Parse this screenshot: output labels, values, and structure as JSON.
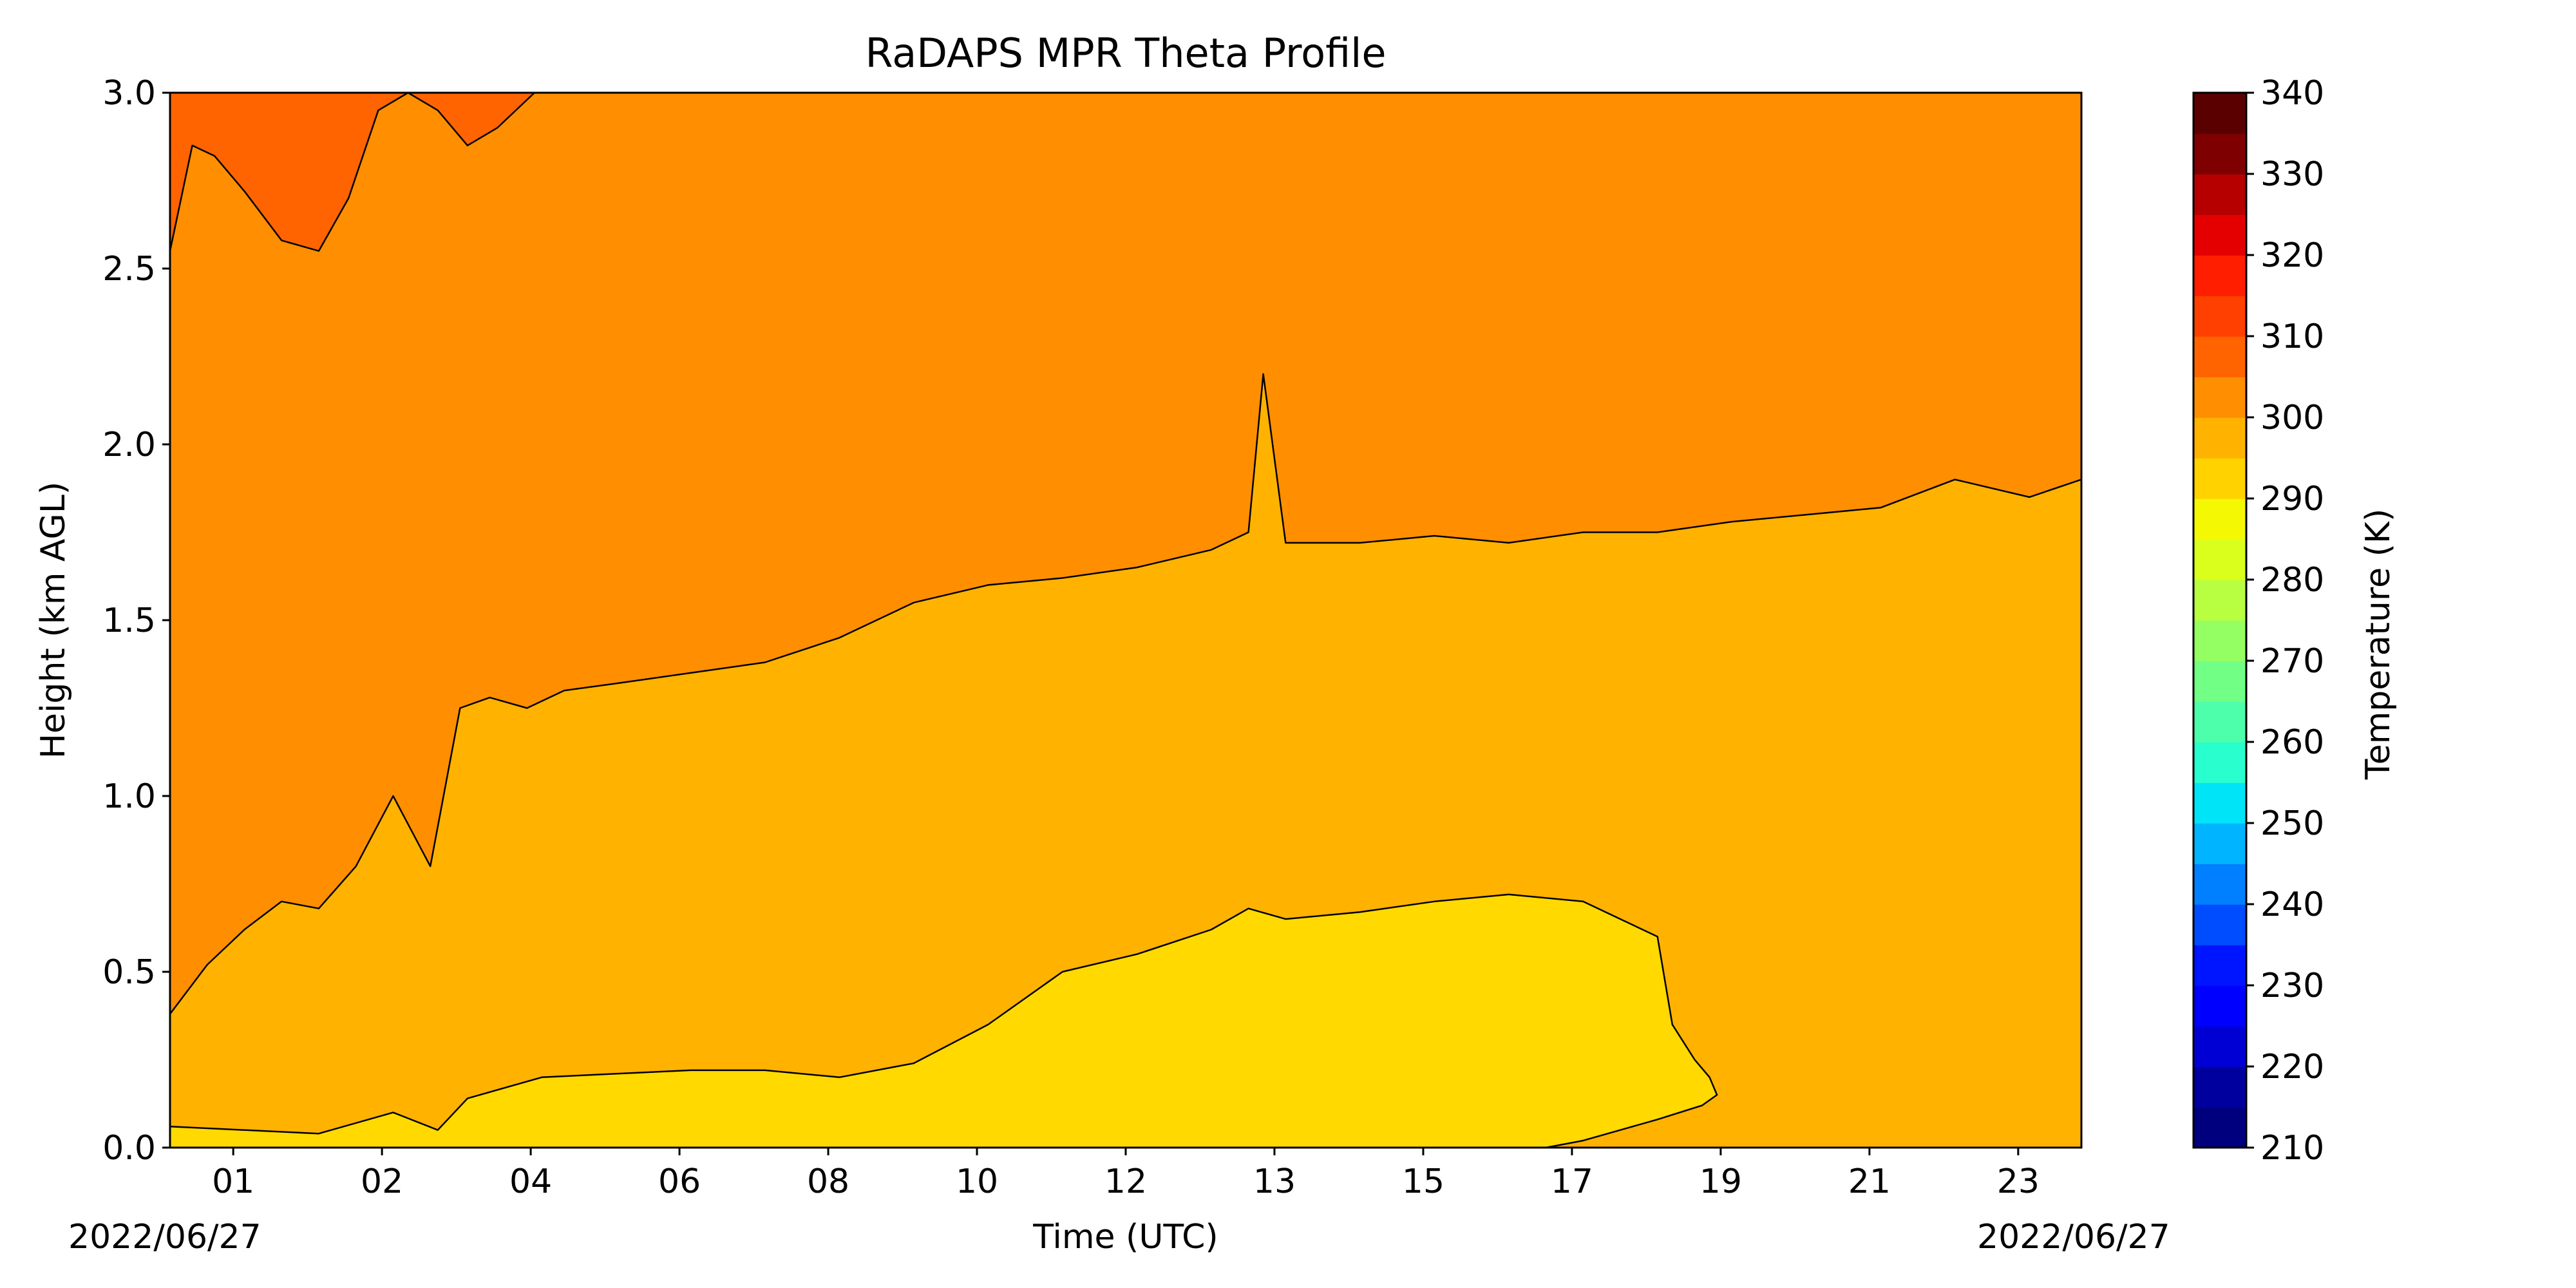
{
  "chart_data": {
    "type": "heatmap",
    "title": "RaDAPS MPR Theta Profile",
    "xlabel": "Time (UTC)",
    "ylabel": "Height (km AGL)",
    "date_left": "2022/06/27",
    "date_right": "2022/06/27",
    "x_ticks": [
      "01",
      "02",
      "04",
      "06",
      "08",
      "10",
      "12",
      "13",
      "15",
      "17",
      "19",
      "21",
      "23"
    ],
    "x_tick_hours": [
      0.85,
      2.85,
      4.85,
      6.85,
      8.85,
      10.85,
      12.85,
      14.85,
      16.85,
      18.85,
      20.85,
      22.85,
      24.85
    ],
    "xlim_hours": [
      0,
      25.7
    ],
    "ylim": [
      0,
      3
    ],
    "y_ticks": [
      "0.0",
      "0.5",
      "1.0",
      "1.5",
      "2.0",
      "2.5",
      "3.0"
    ],
    "y_tick_values": [
      0,
      0.5,
      1.0,
      1.5,
      2.0,
      2.5,
      3.0
    ],
    "colorbar": {
      "label": "Temperature (K)",
      "min": 210,
      "max": 340,
      "step": 5,
      "tick_labels": [
        "210",
        "220",
        "230",
        "240",
        "250",
        "260",
        "270",
        "280",
        "290",
        "300",
        "310",
        "320",
        "330",
        "340"
      ],
      "tick_values": [
        210,
        220,
        230,
        240,
        250,
        260,
        270,
        280,
        290,
        300,
        310,
        320,
        330,
        340
      ],
      "colors": [
        "#00007f",
        "#00009f",
        "#0000d4",
        "#0000ff",
        "#0015ff",
        "#004cff",
        "#0080ff",
        "#00b4ff",
        "#00e4f7",
        "#29ffce",
        "#4dffaa",
        "#71ff86",
        "#94ff63",
        "#b7ff40",
        "#daff1d",
        "#f4f802",
        "#ffd200",
        "#ffb200",
        "#ff8f00",
        "#ff6400",
        "#ff4000",
        "#ff1f00",
        "#e40000",
        "#b60000",
        "#7f0000",
        "#5a0000"
      ]
    },
    "levels": [
      {
        "range": [
          310,
          315
        ],
        "color": "#ff6400"
      },
      {
        "range": [
          305,
          310
        ],
        "color": "#ff8f00"
      },
      {
        "range": [
          300,
          305
        ],
        "color": "#ffb200"
      },
      {
        "range": [
          295,
          300
        ],
        "color": "#ffd900"
      }
    ],
    "contours": {
      "310K": {
        "hours": [
          0,
          0.3,
          0.6,
          1.0,
          1.5,
          2.0,
          2.4,
          2.8,
          3.2,
          3.6,
          4.0,
          4.4,
          4.9,
          5.4,
          5.6
        ],
        "km": [
          2.55,
          2.85,
          2.82,
          2.72,
          2.58,
          2.55,
          2.7,
          2.95,
          3.0,
          2.95,
          2.85,
          2.9,
          3.0,
          3.0,
          3.0
        ]
      },
      "305K": {
        "hours": [
          0,
          0.5,
          1.0,
          1.5,
          2.0,
          2.5,
          3.0,
          3.5,
          3.9,
          4.3,
          4.8,
          5.3,
          6.0,
          7.0,
          8.0,
          9.0,
          10.0,
          11.0,
          12.0,
          13.0,
          14.0,
          14.5,
          14.7,
          15.0,
          16.0,
          17.0,
          18.0,
          19.0,
          20.0,
          21.0,
          22.0,
          23.0,
          24.0,
          25.0,
          25.7
        ],
        "km": [
          0.38,
          0.52,
          0.62,
          0.7,
          0.68,
          0.8,
          1.0,
          0.8,
          1.25,
          1.28,
          1.25,
          1.3,
          1.32,
          1.35,
          1.38,
          1.45,
          1.55,
          1.6,
          1.62,
          1.65,
          1.7,
          1.75,
          2.2,
          1.72,
          1.72,
          1.74,
          1.72,
          1.75,
          1.75,
          1.78,
          1.8,
          1.82,
          1.9,
          1.85,
          1.9
        ]
      },
      "300K": {
        "hours": [
          0,
          1.0,
          2.0,
          3.0,
          3.6,
          4.0,
          5.0,
          6.0,
          7.0,
          8.0,
          9.0,
          10.0,
          11.0,
          12.0,
          13.0,
          14.0,
          14.5,
          15.0,
          16.0,
          17.0,
          18.0,
          19.0,
          19.5,
          20.0,
          20.2,
          20.5,
          20.7,
          20.8,
          20.6,
          20.0,
          19.5,
          19.0,
          18.5
        ],
        "km": [
          0.06,
          0.05,
          0.04,
          0.1,
          0.05,
          0.14,
          0.2,
          0.21,
          0.22,
          0.22,
          0.2,
          0.24,
          0.35,
          0.5,
          0.55,
          0.62,
          0.68,
          0.65,
          0.67,
          0.7,
          0.72,
          0.7,
          0.65,
          0.6,
          0.35,
          0.25,
          0.2,
          0.15,
          0.12,
          0.08,
          0.05,
          0.02,
          0.0
        ]
      }
    }
  }
}
